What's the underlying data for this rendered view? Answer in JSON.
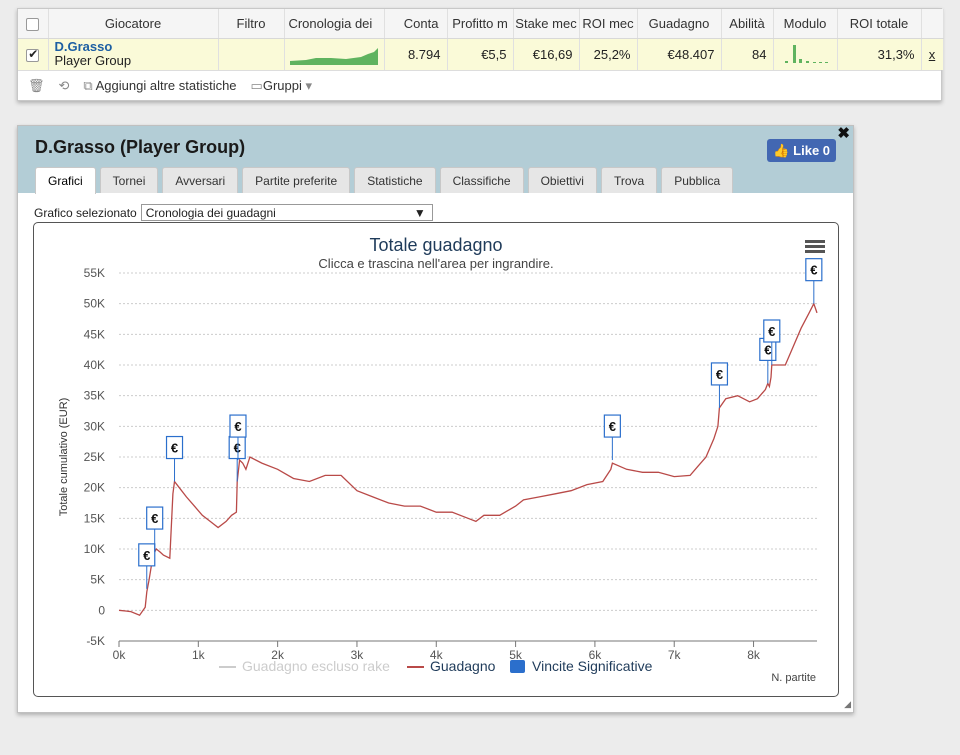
{
  "table": {
    "headers": [
      "",
      "Giocatore",
      "Filtro",
      "Cronologia dei  ",
      "Conta",
      "Profitto m",
      "Stake mec",
      "ROI mec",
      "Guadagno",
      "Abilità",
      "Modulo",
      "ROI totale",
      ""
    ],
    "row": {
      "player_name": "D.Grasso",
      "player_sub": "Player Group",
      "conta": "8.794",
      "profitto": "€5,5",
      "stake": "€16,69",
      "roi": "25,2%",
      "guadagno": "€48.407",
      "abilita": "84",
      "roi_totale": "31,3%",
      "remove": "x"
    }
  },
  "toolbar": {
    "add_stats": "Aggiungi altre statistiche",
    "groups": "Gruppi"
  },
  "panel": {
    "title": "D.Grasso (Player Group)",
    "like_label": "Like 0",
    "tabs": [
      "Grafici",
      "Tornei",
      "Avversari",
      "Partite preferite",
      "Statistiche",
      "Classifiche",
      "Obiettivi",
      "Trova",
      "Pubblica"
    ],
    "selector_label": "Grafico selezionato",
    "selector_value": "Cronologia dei guadagni"
  },
  "chart_data": {
    "type": "line",
    "title": "Totale guadagno",
    "subtitle": "Clicca e trascina nell'area per ingrandire.",
    "ylabel": "Totale cumulativo (EUR)",
    "xlabel": "N. partite",
    "ylim": [
      -5000,
      55000
    ],
    "xlim": [
      0,
      8800
    ],
    "y_ticks": [
      "55K",
      "50K",
      "45K",
      "40K",
      "35K",
      "30K",
      "25K",
      "20K",
      "15K",
      "10K",
      "5K",
      "0",
      "-5K"
    ],
    "x_ticks": [
      "0k",
      "1k",
      "2k",
      "3k",
      "4k",
      "5k",
      "6k",
      "7k",
      "8k"
    ],
    "legend": [
      "Guadagno escluso rake",
      "Guadagno",
      "Vincite Significative"
    ],
    "series_color": "#b94a48",
    "flag_color": "#2b6fcc",
    "flag_symbol": "€",
    "x": [
      0,
      150,
      260,
      330,
      350,
      380,
      430,
      470,
      520,
      560,
      640,
      680,
      700,
      760,
      850,
      950,
      1050,
      1150,
      1250,
      1350,
      1420,
      1480,
      1490,
      1520,
      1560,
      1600,
      1650,
      1800,
      2000,
      2200,
      2400,
      2600,
      2800,
      3000,
      3200,
      3400,
      3600,
      3800,
      4000,
      4200,
      4400,
      4500,
      4600,
      4800,
      5000,
      5100,
      5300,
      5500,
      5700,
      5900,
      6100,
      6200,
      6220,
      6400,
      6600,
      6800,
      7000,
      7200,
      7300,
      7400,
      7500,
      7550,
      7570,
      7650,
      7800,
      7950,
      8050,
      8150,
      8180,
      8200,
      8220,
      8230,
      8300,
      8400,
      8500,
      8600,
      8700,
      8760,
      8800
    ],
    "y": [
      0,
      -200,
      -800,
      500,
      3000,
      5000,
      9000,
      10000,
      9500,
      9000,
      8500,
      19000,
      21000,
      20000,
      18500,
      17000,
      15500,
      14500,
      13500,
      14500,
      15500,
      16000,
      21000,
      24500,
      24000,
      23000,
      25000,
      24000,
      23000,
      21500,
      21000,
      22000,
      22000,
      19500,
      18500,
      17500,
      17000,
      17000,
      16000,
      16000,
      15000,
      14500,
      15500,
      15500,
      17000,
      18000,
      18500,
      19000,
      19500,
      20500,
      21000,
      23000,
      24000,
      23000,
      22500,
      22500,
      21800,
      22000,
      23500,
      25000,
      28000,
      30000,
      33000,
      34500,
      35000,
      34000,
      34500,
      36000,
      37000,
      36500,
      38000,
      40000,
      40000,
      40000,
      43000,
      46000,
      48500,
      50000,
      48500
    ],
    "flags": [
      {
        "x": 350,
        "y": 3500
      },
      {
        "x": 450,
        "y": 9500
      },
      {
        "x": 700,
        "y": 21000
      },
      {
        "x": 1490,
        "y": 21000
      },
      {
        "x": 1500,
        "y": 24500
      },
      {
        "x": 6220,
        "y": 24500
      },
      {
        "x": 7570,
        "y": 33000
      },
      {
        "x": 8180,
        "y": 37000
      },
      {
        "x": 8230,
        "y": 40000
      },
      {
        "x": 8760,
        "y": 50000
      }
    ]
  }
}
